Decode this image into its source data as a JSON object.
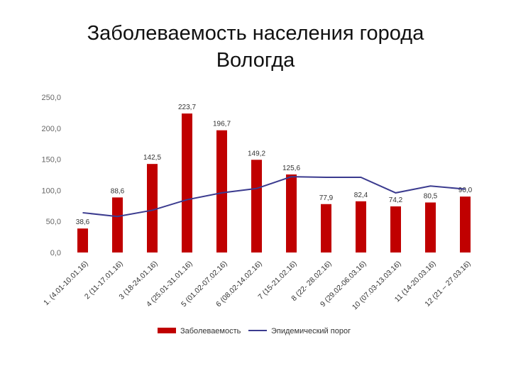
{
  "title": {
    "line1": "Заболеваемость населения города",
    "line2": "Вологда"
  },
  "chart_data": {
    "type": "bar",
    "categories": [
      "1. (4.01-10.01.16)",
      "2 (11-17.01.16)",
      "3 (18-24.01.16)",
      "4 (25.01-31.01.16)",
      "5 (01.02-07.02.16)",
      "6 (08.02-14.02.16)",
      "7 (15-21.02.16)",
      "8 (22- 28.02.16)",
      "9 (29.02-06.03.16)",
      "10 (07.03-13.03.16)",
      "11 (14-20.03.16)",
      "12 (21 – 27.03.16)"
    ],
    "series": [
      {
        "name": "Заболеваемость",
        "type": "bar",
        "color": "#c00000",
        "values": [
          38.6,
          88.6,
          142.5,
          223.7,
          196.7,
          149.2,
          125.6,
          77.9,
          82.4,
          74.2,
          80.5,
          90.0
        ],
        "labels": [
          "38,6",
          "88,6",
          "142,5",
          "223,7",
          "196,7",
          "149,2",
          "125,6",
          "77,9",
          "82,4",
          "74,2",
          "80,5",
          "90,0"
        ]
      },
      {
        "name": "Эпидемический порог",
        "type": "line",
        "color": "#3b3b8f",
        "values": [
          64,
          58,
          68,
          85,
          96,
          103,
          122,
          121,
          121,
          96,
          107,
          102
        ]
      }
    ],
    "ylim": [
      0,
      250
    ],
    "yticks": [
      0,
      50,
      100,
      150,
      200,
      250
    ],
    "ytick_labels": [
      "0,0",
      "50,0",
      "100,0",
      "150,0",
      "200,0",
      "250,0"
    ],
    "grid": false,
    "legend_position": "bottom"
  }
}
